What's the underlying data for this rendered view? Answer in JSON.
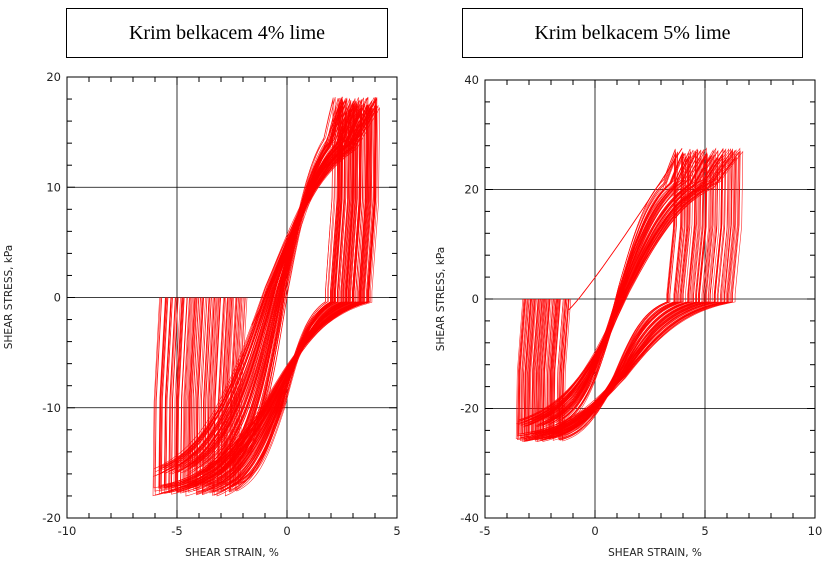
{
  "colors": {
    "series": "#ff0000",
    "grid": "#000000",
    "background": "#ffffff"
  },
  "chart_data": [
    {
      "type": "line",
      "title": "Krim belkacem 4% lime",
      "xlabel": "SHEAR STRAIN, %",
      "ylabel": "SHEAR STRESS, kPa",
      "xlim": [
        -10,
        5
      ],
      "ylim": [
        -20,
        20
      ],
      "xticks": [
        -10,
        -5,
        0,
        5
      ],
      "yticks": [
        -20,
        -10,
        0,
        10,
        20
      ],
      "xtick_labels": [
        "-10",
        "-5",
        "0",
        "5"
      ],
      "ytick_labels": [
        "-20",
        "-10",
        "0",
        "10",
        "20"
      ],
      "grid": true,
      "cycles": 120,
      "description_values": {
        "strain_range": [
          -6.0,
          4.2
        ],
        "stress_range": [
          -19.0,
          18.2
        ],
        "start_point": [
          -1.6,
          -2.5
        ]
      },
      "series": [
        {
          "values_note": "cyclic hysteresis loops",
          "x": [
            -1.6,
            -1.5,
            0,
            1.8,
            2.3,
            4.0,
            4.1,
            3.5,
            0,
            -3,
            -5.9,
            -6.0,
            -5.5,
            -2,
            0,
            1.8,
            4.0
          ],
          "y": [
            -2.5,
            0,
            4.5,
            12,
            18.2,
            18,
            2,
            0.5,
            -1.5,
            -5,
            -19,
            -18.5,
            0.2,
            2,
            4,
            7,
            17
          ]
        }
      ]
    },
    {
      "type": "line",
      "title": "Krim belkacem 5% lime",
      "xlabel": "SHEAR STRAIN, %",
      "ylabel": "SHEAR STRESS, kPa",
      "xlim": [
        -5,
        10
      ],
      "ylim": [
        -40,
        40
      ],
      "xticks": [
        -5,
        0,
        5,
        10
      ],
      "yticks": [
        -40,
        -20,
        0,
        20,
        40
      ],
      "xtick_labels": [
        "-5",
        "0",
        "5",
        "10"
      ],
      "ytick_labels": [
        "-40",
        "-20",
        "0",
        "20",
        "40"
      ],
      "grid": true,
      "cycles": 90,
      "description_values": {
        "strain_range": [
          -3.6,
          6.6
        ],
        "stress_range": [
          -27.5,
          27.5
        ],
        "start_point": [
          -1.2,
          -2
        ]
      },
      "series": [
        {
          "values_note": "cyclic hysteresis loops",
          "x": [
            -1.2,
            -1.0,
            0,
            3,
            4.2,
            6.5,
            6.6,
            5.5,
            2,
            -1.5,
            -3.5,
            -3.6,
            -3.0,
            -1,
            0,
            3,
            6
          ],
          "y": [
            -2,
            2,
            5,
            14,
            26,
            27.5,
            1,
            0.5,
            -5,
            -20,
            -27.5,
            -27,
            1,
            3,
            6,
            12,
            26
          ]
        }
      ]
    }
  ]
}
